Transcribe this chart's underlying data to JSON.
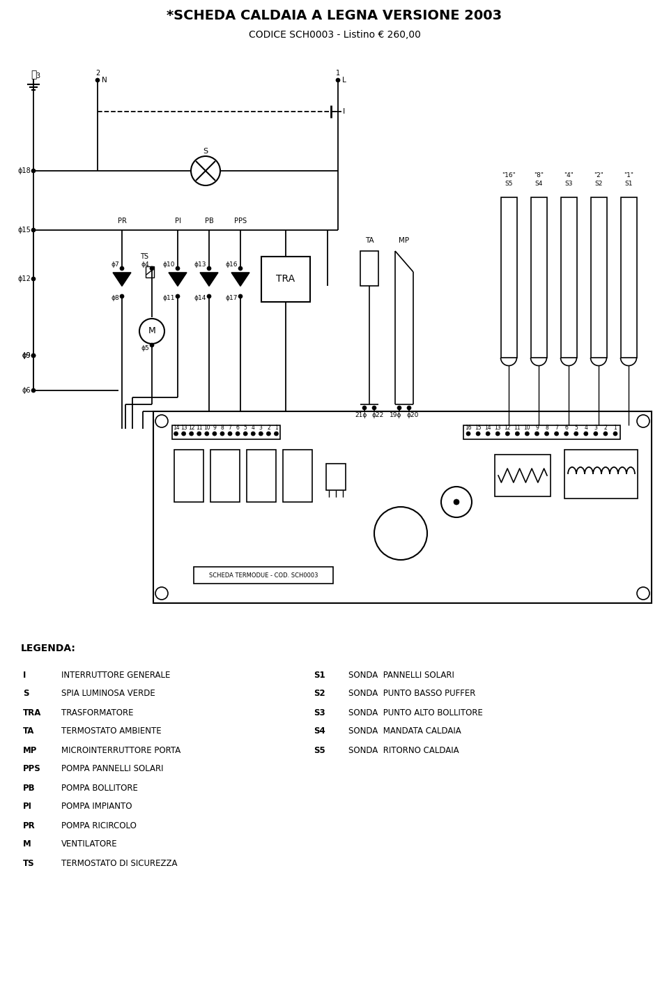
{
  "title": "*SCHEDA CALDAIA A LEGNA VERSIONE 2003",
  "subtitle": "CODICE SCH0003 - Listino € 260,00",
  "board_label": "SCHEDA TERMODUE - COD. SCH0003",
  "legend_title": "LEGENDA:",
  "legend_left": [
    [
      "I",
      "INTERRUTTORE GENERALE"
    ],
    [
      "S",
      "SPIA LUMINOSA VERDE"
    ],
    [
      "TRA",
      "TRASFORMATORE"
    ],
    [
      "TA",
      "TERMOSTATO AMBIENTE"
    ],
    [
      "MP",
      "MICROINTERRUTTORE PORTA"
    ],
    [
      "PPS",
      "POMPA PANNELLI SOLARI"
    ],
    [
      "PB",
      "POMPA BOLLITORE"
    ],
    [
      "PI",
      "POMPA IMPIANTO"
    ],
    [
      "PR",
      "POMPA RICIRCOLO"
    ],
    [
      "M",
      "VENTILATORE"
    ],
    [
      "TS",
      "TERMOSTATO DI SICUREZZA"
    ]
  ],
  "legend_right": [
    [
      "S1",
      "SONDA  PANNELLI SOLARI"
    ],
    [
      "S2",
      "SONDA  PUNTO BASSO PUFFER"
    ],
    [
      "S3",
      "SONDA  PUNTO ALTO BOLLITORE"
    ],
    [
      "S4",
      "SONDA  MANDATA CALDAIA"
    ],
    [
      "S5",
      "SONDA  RITORNO CALDAIA"
    ]
  ]
}
